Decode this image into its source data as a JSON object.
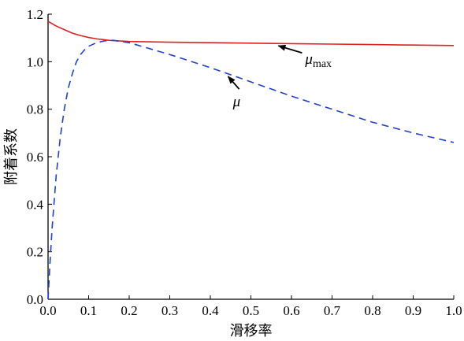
{
  "chart_data": {
    "type": "line",
    "title": "",
    "xlabel": "滑移率",
    "ylabel": "附着系数",
    "xlim": [
      0.0,
      1.0
    ],
    "ylim": [
      0.0,
      1.2
    ],
    "xticks": [
      "0.0",
      "0.1",
      "0.2",
      "0.3",
      "0.4",
      "0.5",
      "0.6",
      "0.7",
      "0.8",
      "0.9",
      "1.0"
    ],
    "yticks": [
      "0.0",
      "0.2",
      "0.4",
      "0.6",
      "0.8",
      "1.0",
      "1.2"
    ],
    "grid": false,
    "series": [
      {
        "name": "μmax",
        "style": "solid",
        "color": "#e02020",
        "x": [
          0.0,
          0.01,
          0.02,
          0.04,
          0.06,
          0.08,
          0.1,
          0.12,
          0.15,
          0.2,
          0.3,
          0.4,
          0.5,
          0.6,
          0.7,
          0.8,
          0.9,
          1.0
        ],
        "y": [
          1.17,
          1.16,
          1.15,
          1.135,
          1.12,
          1.11,
          1.102,
          1.096,
          1.09,
          1.085,
          1.082,
          1.08,
          1.078,
          1.076,
          1.074,
          1.072,
          1.07,
          1.068
        ]
      },
      {
        "name": "μ",
        "style": "dashed",
        "color": "#2040d0",
        "x": [
          0.0,
          0.005,
          0.01,
          0.02,
          0.03,
          0.04,
          0.05,
          0.06,
          0.07,
          0.08,
          0.09,
          0.1,
          0.12,
          0.14,
          0.16,
          0.2,
          0.3,
          0.4,
          0.5,
          0.6,
          0.7,
          0.8,
          0.9,
          1.0
        ],
        "y": [
          0.0,
          0.16,
          0.3,
          0.52,
          0.68,
          0.8,
          0.89,
          0.95,
          1.0,
          1.03,
          1.05,
          1.065,
          1.08,
          1.088,
          1.09,
          1.08,
          1.03,
          0.975,
          0.915,
          0.855,
          0.8,
          0.745,
          0.7,
          0.66
        ]
      }
    ],
    "annotations": [
      {
        "label": "μ",
        "sub": "max",
        "series": "μmax",
        "at_x": 0.56
      },
      {
        "label": "μ",
        "sub": "",
        "series": "μ",
        "at_x": 0.44
      }
    ]
  }
}
